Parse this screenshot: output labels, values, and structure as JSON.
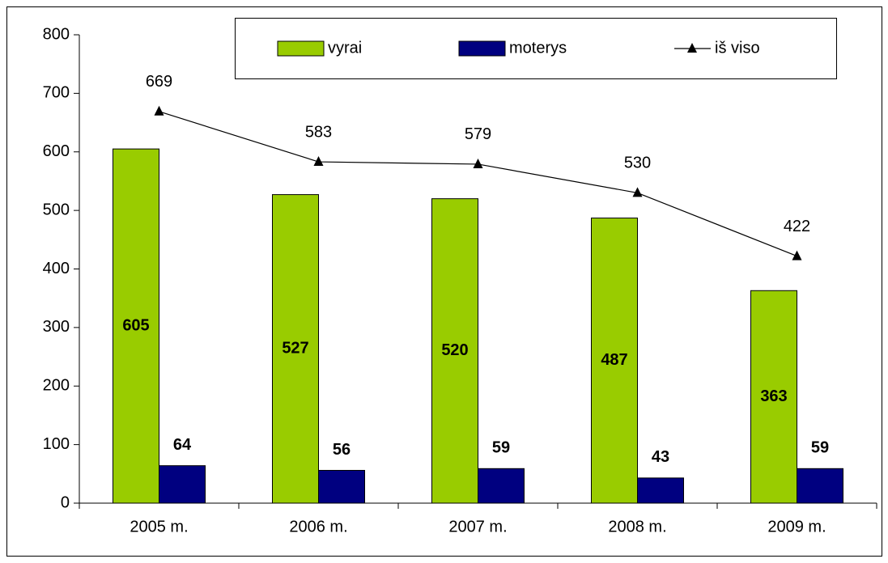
{
  "chart_data": {
    "type": "bar",
    "categories": [
      "2005 m.",
      "2006 m.",
      "2007 m.",
      "2008 m.",
      "2009 m."
    ],
    "series": [
      {
        "name": "vyrai",
        "type": "bar",
        "color": "#99cc00",
        "values": [
          605,
          527,
          520,
          487,
          363
        ]
      },
      {
        "name": "moterys",
        "type": "bar",
        "color": "#000080",
        "values": [
          64,
          56,
          59,
          43,
          59
        ]
      },
      {
        "name": "iš viso",
        "type": "line",
        "color": "#000000",
        "values": [
          669,
          583,
          579,
          530,
          422
        ]
      }
    ],
    "ylim": [
      0,
      800
    ],
    "yticks": [
      0,
      100,
      200,
      300,
      400,
      500,
      600,
      700,
      800
    ],
    "grid": false,
    "legend": "top"
  }
}
